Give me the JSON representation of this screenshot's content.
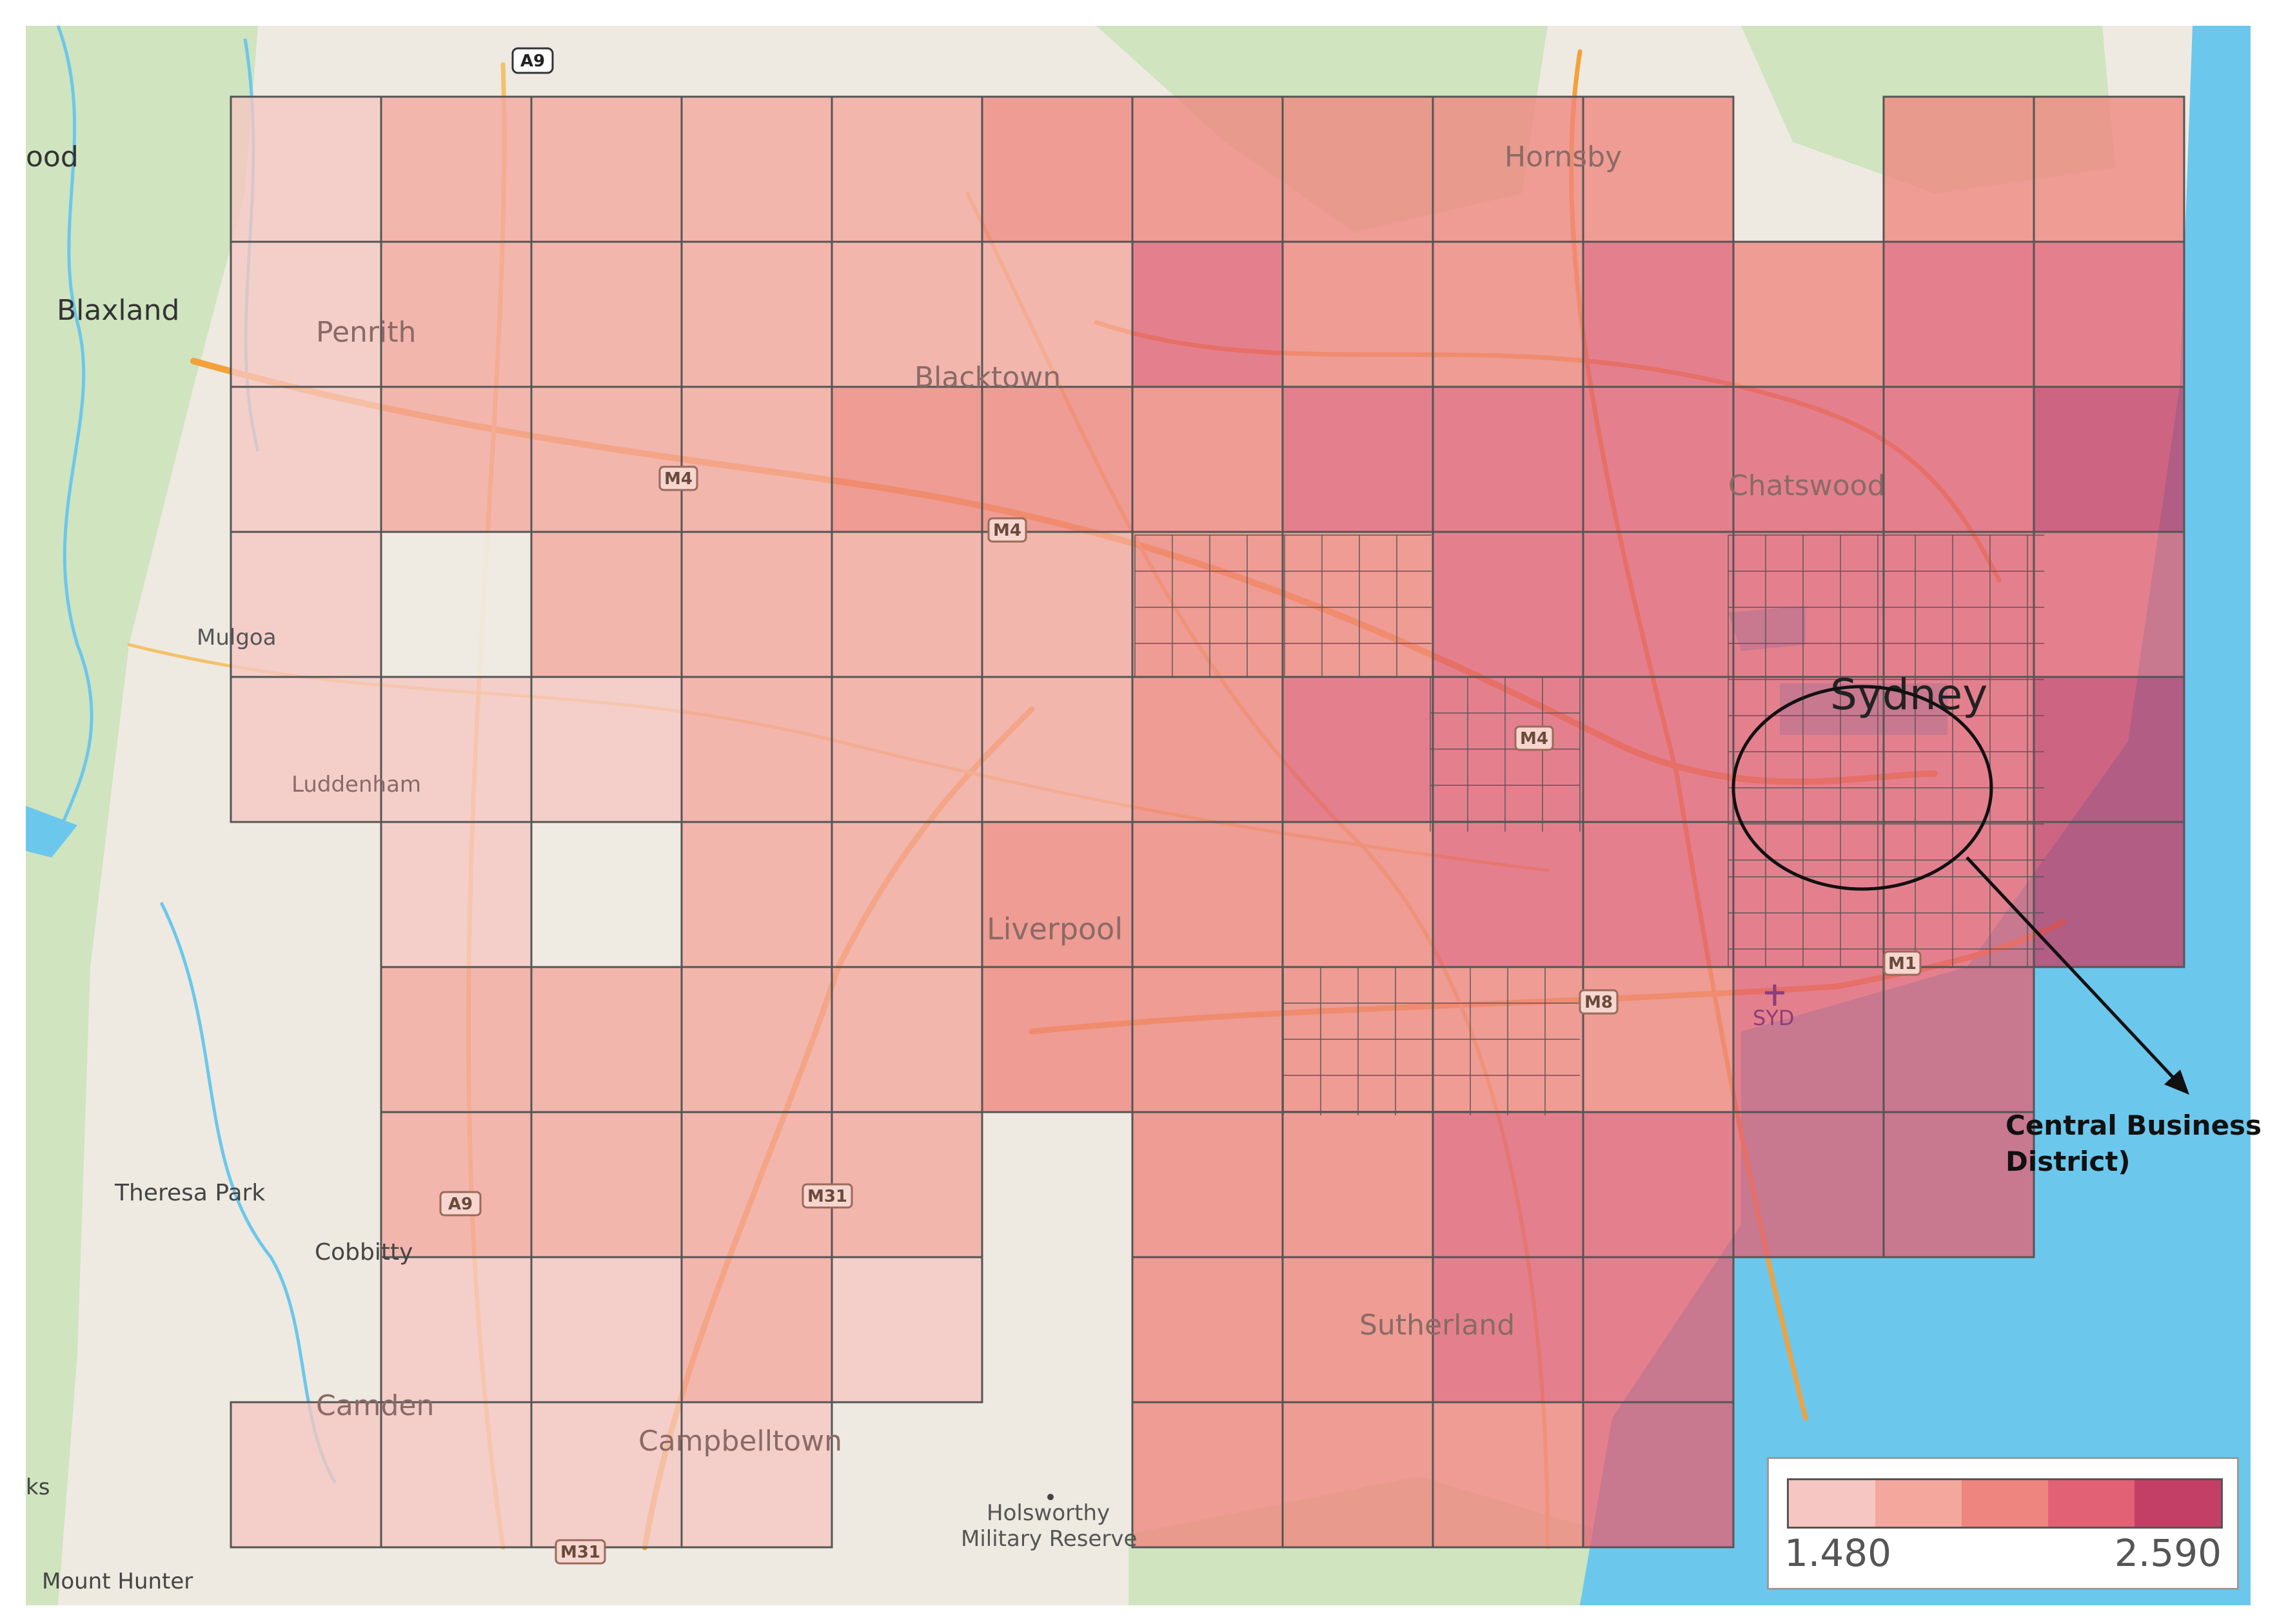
{
  "map": {
    "labels": {
      "penrith": "Penrith",
      "blacktown": "Blacktown",
      "hornsby": "Hornsby",
      "chatswood": "Chatswood",
      "sydney": "Sydney",
      "liverpool": "Liverpool",
      "sutherland": "Sutherland",
      "campbelltown": "Campbelltown",
      "camden": "Camden",
      "blaxland": "Blaxland",
      "mulgoa": "Mulgoa",
      "luddenham": "Luddenham",
      "theresa_park": "Theresa Park",
      "cobbitty": "Cobbitty",
      "holsworthy_1": "Holsworthy",
      "holsworthy_2": "Military Reserve",
      "mount_hunter": "Mount Hunter",
      "edge_left_top": "ood",
      "edge_left_bottom": "ks",
      "syd": "SYD"
    },
    "road_shields": {
      "a9_top": "A9",
      "m4_1": "M4",
      "m4_2": "M4",
      "m4_3": "M4",
      "m8": "M8",
      "m1": "M1",
      "m31_1": "M31",
      "m31_2": "M31",
      "a9_bottom": "A9"
    },
    "colors": {
      "water": "#6cc7ec",
      "land": "#eeeae1",
      "park": "#cfe4bf",
      "road_major": "#f3a13a",
      "road_minor": "#f4c16a",
      "grid_line": "#555555"
    }
  },
  "legend": {
    "min": "1.480",
    "max": "2.590",
    "colors": [
      "#f6c7c2",
      "#f3a79d",
      "#ee857e",
      "#e26175",
      "#c43f66"
    ]
  },
  "annotation": {
    "line1": "Central Business",
    "line2": "District)"
  }
}
